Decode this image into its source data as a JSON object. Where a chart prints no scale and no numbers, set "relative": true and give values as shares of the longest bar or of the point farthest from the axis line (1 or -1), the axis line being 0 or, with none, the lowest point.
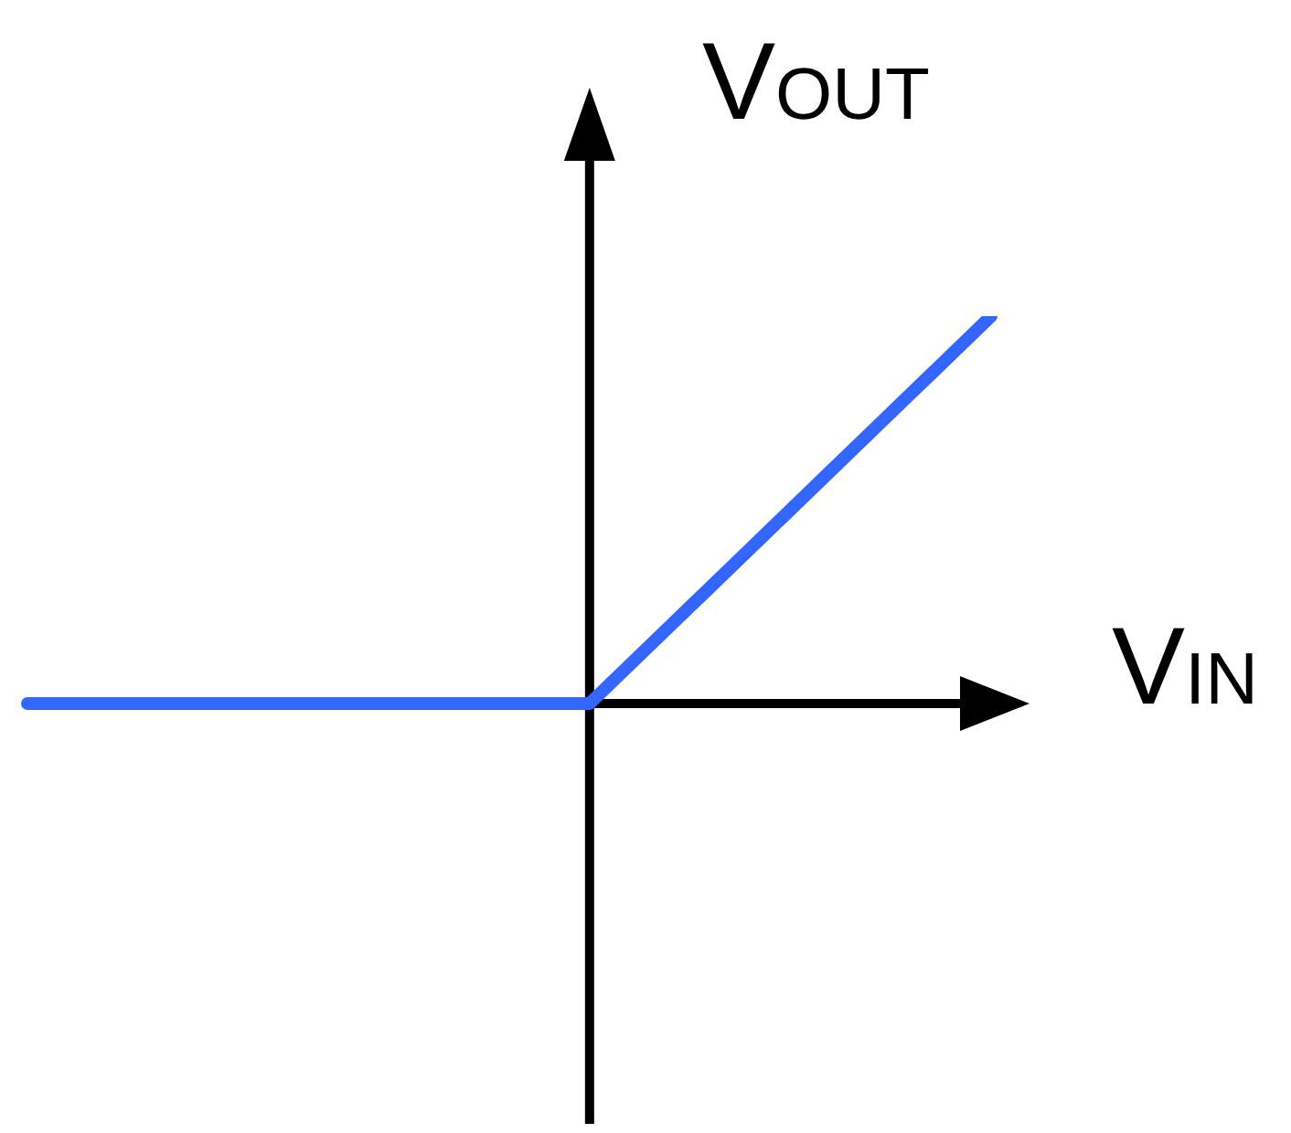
{
  "chart_data": {
    "type": "line",
    "xlabel": "V$_{IN}$",
    "ylabel": "V$_{OUT}$",
    "relative": true,
    "categories": [
      null,
      null,
      null,
      null,
      null,
      null,
      null,
      null,
      null,
      null,
      null,
      null,
      null
    ],
    "series": [
      {
        "color": "#3366ff",
        "values": [
          0,
          0,
          0,
          0,
          0,
          0,
          0,
          0,
          0.2,
          0.4,
          0.6,
          0.8,
          1
        ]
      }
    ],
    "marker": "none",
    "line_style": "solid"
  }
}
